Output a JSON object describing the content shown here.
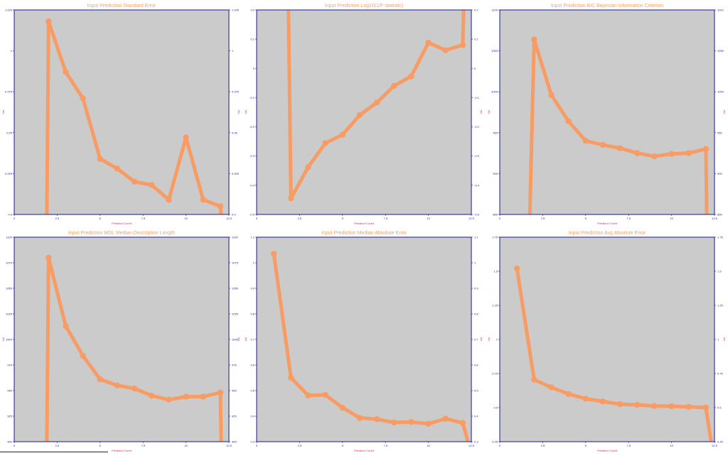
{
  "chart_data": [
    {
      "type": "line",
      "title": "Input Prediction  Standard Error",
      "xlabel": "Predictor Count",
      "ylabel": "Val",
      "xlim": [
        0,
        12.5
      ],
      "ylim": [
        0.9,
        1.025
      ],
      "xticks": [
        0,
        2.5,
        5,
        7.5,
        10,
        12.5
      ],
      "xtick_labels": [
        "0",
        "2.5",
        "5",
        "7.5",
        "10",
        "12.5"
      ],
      "yticks": [
        0.9,
        0.925,
        0.95,
        0.975,
        1.0,
        1.025
      ],
      "ytick_labels": [
        "0.9",
        "0.925",
        "0.95",
        "0.975",
        "1",
        "1.025"
      ],
      "x": [
        2,
        3,
        4,
        5,
        6,
        7,
        8,
        9,
        10,
        11,
        12
      ],
      "values": [
        1.018,
        0.987,
        0.971,
        0.934,
        0.928,
        0.92,
        0.918,
        0.909,
        0.947,
        0.909,
        0.905
      ],
      "drop_start": [
        1.9,
        0.9
      ],
      "drop_end": [
        12.05,
        0.9
      ],
      "grid": false,
      "color": "#f79c64"
    },
    {
      "type": "line",
      "title": "Input Prediction  Log10(1/F-statistic)",
      "xlabel": "Predictor Count",
      "ylabel": "Val",
      "xlim": [
        0,
        12.5
      ],
      "ylim": [
        -0.5,
        0.2
      ],
      "xticks": [
        0,
        2.5,
        5,
        7.5,
        10,
        12.5
      ],
      "xtick_labels": [
        "0",
        "2.5",
        "5",
        "7.5",
        "10",
        "12.5"
      ],
      "yticks": [
        -0.5,
        -0.4,
        -0.3,
        -0.2,
        -0.1,
        0,
        0.1,
        0.2
      ],
      "ytick_labels": [
        "-0.5",
        "-0.4",
        "-0.3",
        "-0.2",
        "-0.1",
        "0",
        "0.1",
        "0.2"
      ],
      "x": [
        2,
        3,
        4,
        5,
        6,
        7,
        8,
        9,
        10,
        11,
        12
      ],
      "values": [
        -0.445,
        -0.338,
        -0.256,
        -0.227,
        -0.16,
        -0.117,
        -0.06,
        -0.027,
        0.088,
        0.062,
        0.08
      ],
      "drop_start": [
        1.85,
        0.2
      ],
      "drop_end": [
        12.05,
        0.2
      ],
      "grid": false,
      "color": "#f79c64"
    },
    {
      "type": "line",
      "title": "Input Prediction  BIC Bayesian Information Criterion",
      "xlabel": "Predictor Count",
      "ylabel": "Val",
      "xlim": [
        0,
        12.5
      ],
      "ylim": [
        850,
        1100
      ],
      "xticks": [
        0,
        2.5,
        5,
        7.5,
        10,
        12.5
      ],
      "xtick_labels": [
        "0",
        "2.5",
        "5",
        "7.5",
        "10",
        "12.5"
      ],
      "yticks": [
        850,
        900,
        950,
        1000,
        1050,
        1100
      ],
      "ytick_labels": [
        "850",
        "900",
        "950",
        "1000",
        "1050",
        "1100"
      ],
      "x": [
        2,
        3,
        4,
        5,
        6,
        7,
        8,
        9,
        10,
        11,
        12
      ],
      "values": [
        1064,
        996,
        964,
        940,
        935,
        931,
        925,
        921,
        924,
        925,
        930
      ],
      "drop_start": [
        1.75,
        850
      ],
      "drop_end": [
        12.05,
        850
      ],
      "grid": false,
      "color": "#f79c64"
    },
    {
      "type": "line",
      "title": "Input Prediction  MDL Median Description Length",
      "xlabel": "Predictor Count",
      "ylabel": "Val",
      "xlim": [
        0,
        12.5
      ],
      "ylim": [
        900,
        1100
      ],
      "xticks": [
        0,
        2.5,
        5,
        7.5,
        10,
        12.5
      ],
      "xtick_labels": [
        "0",
        "2.5",
        "5",
        "7.5",
        "10",
        "12.5"
      ],
      "yticks": [
        900,
        925,
        950,
        975,
        1000,
        1025,
        1050,
        1075,
        1100
      ],
      "ytick_labels": [
        "900",
        "925",
        "950",
        "975",
        "1000",
        "1025",
        "1050",
        "1075",
        "1100"
      ],
      "x": [
        2,
        3,
        4,
        5,
        6,
        7,
        8,
        9,
        10,
        11,
        12
      ],
      "values": [
        1080,
        1013,
        984,
        961,
        955,
        952,
        945,
        941,
        944,
        944,
        948
      ],
      "drop_start": [
        1.9,
        900
      ],
      "drop_end": [
        12.05,
        900
      ],
      "grid": false,
      "color": "#f79c64"
    },
    {
      "type": "line",
      "title": "Input Prediction  Median Absolute Error",
      "xlabel": "Predictor Count",
      "ylabel": "Val",
      "xlim": [
        0,
        12.5
      ],
      "ylim": [
        0.3,
        1.1
      ],
      "xticks": [
        0,
        2.5,
        5,
        7.5,
        10,
        12.5
      ],
      "xtick_labels": [
        "0",
        "2.5",
        "5",
        "7.5",
        "10",
        "12.5"
      ],
      "yticks": [
        0.3,
        0.4,
        0.5,
        0.6,
        0.7,
        0.8,
        0.9,
        1.0,
        1.1
      ],
      "ytick_labels": [
        "0.3",
        "0.4",
        "0.5",
        "0.6",
        "0.7",
        "0.8",
        "0.9",
        "1",
        "1.1"
      ],
      "x": [
        1,
        2,
        3,
        4,
        5,
        6,
        7,
        8,
        9,
        10,
        11,
        12
      ],
      "values": [
        1.035,
        0.55,
        0.481,
        0.483,
        0.433,
        0.393,
        0.388,
        0.375,
        0.377,
        0.37,
        0.39,
        0.373
      ],
      "drop_start": null,
      "drop_end": [
        12.3,
        0.3
      ],
      "grid": false,
      "color": "#f79c64"
    },
    {
      "type": "line",
      "title": "Input Prediction  Avg Absolute Error",
      "xlabel": "Predictor Count",
      "ylabel": "Val",
      "xlim": [
        0,
        12.5
      ],
      "ylim": [
        0.25,
        1.75
      ],
      "xticks": [
        0,
        2.5,
        5,
        7.5,
        10,
        12.5
      ],
      "xtick_labels": [
        "0",
        "2.5",
        "5",
        "7.5",
        "10",
        "12.5"
      ],
      "yticks": [
        0.25,
        0.5,
        0.75,
        1.0,
        1.25,
        1.5,
        1.75
      ],
      "ytick_labels": [
        "0.25",
        "0.5",
        "0.75",
        "1",
        "1.25",
        "1.5",
        "1.75"
      ],
      "x": [
        1,
        2,
        3,
        4,
        5,
        6,
        7,
        8,
        9,
        10,
        11,
        12
      ],
      "values": [
        1.52,
        0.705,
        0.648,
        0.6,
        0.565,
        0.545,
        0.525,
        0.52,
        0.512,
        0.51,
        0.505,
        0.5
      ],
      "drop_start": null,
      "drop_end": [
        12.3,
        0.25
      ],
      "grid": false,
      "color": "#f79c64"
    }
  ]
}
